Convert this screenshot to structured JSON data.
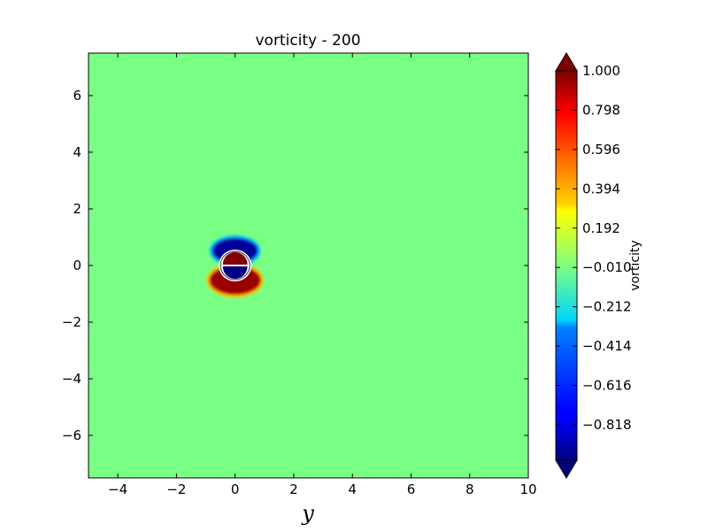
{
  "chart_data": {
    "type": "heatmap",
    "title": "vorticity - 200",
    "xlabel": "y",
    "ylabel": "",
    "xlim": [
      -5,
      10
    ],
    "ylim": [
      -7.5,
      7.5
    ],
    "x_ticks": [
      -4,
      -2,
      0,
      2,
      4,
      6,
      8,
      10
    ],
    "x_tick_labels": [
      "−4",
      "−2",
      "0",
      "2",
      "4",
      "6",
      "8",
      "10"
    ],
    "y_ticks": [
      -6,
      -4,
      -2,
      0,
      2,
      4,
      6
    ],
    "y_tick_labels": [
      "−6",
      "−4",
      "−2",
      "0",
      "2",
      "4",
      "6"
    ],
    "background_value": -0.01,
    "colormap": "jet",
    "vmin": -1.0,
    "vmax": 1.0,
    "colorbar": {
      "label": "vorticity",
      "extend": "both",
      "ticks": [
        1.0,
        0.798,
        0.596,
        0.394,
        0.192,
        -0.01,
        -0.212,
        -0.414,
        -0.616,
        -0.818
      ],
      "tick_labels": [
        "1.000",
        "0.798",
        "0.596",
        "0.394",
        "0.192",
        "−0.010",
        "−0.212",
        "−0.414",
        "−0.616",
        "−0.818"
      ]
    },
    "features": [
      {
        "kind": "crescent",
        "center": [
          0.0,
          0.52
        ],
        "rx": 0.75,
        "ry": 0.42,
        "value": -1.0
      },
      {
        "kind": "crescent",
        "center": [
          0.0,
          -0.52
        ],
        "rx": 0.85,
        "ry": 0.48,
        "value": 1.0
      },
      {
        "kind": "half-disk",
        "center": [
          0.0,
          0.09
        ],
        "rx": 0.42,
        "ry": 0.2,
        "value": 1.0
      },
      {
        "kind": "half-disk",
        "center": [
          0.0,
          -0.09
        ],
        "rx": 0.42,
        "ry": 0.2,
        "value": -1.0
      },
      {
        "kind": "cylinder-outline",
        "center": [
          0.0,
          0.0
        ],
        "r": 0.5
      }
    ]
  }
}
